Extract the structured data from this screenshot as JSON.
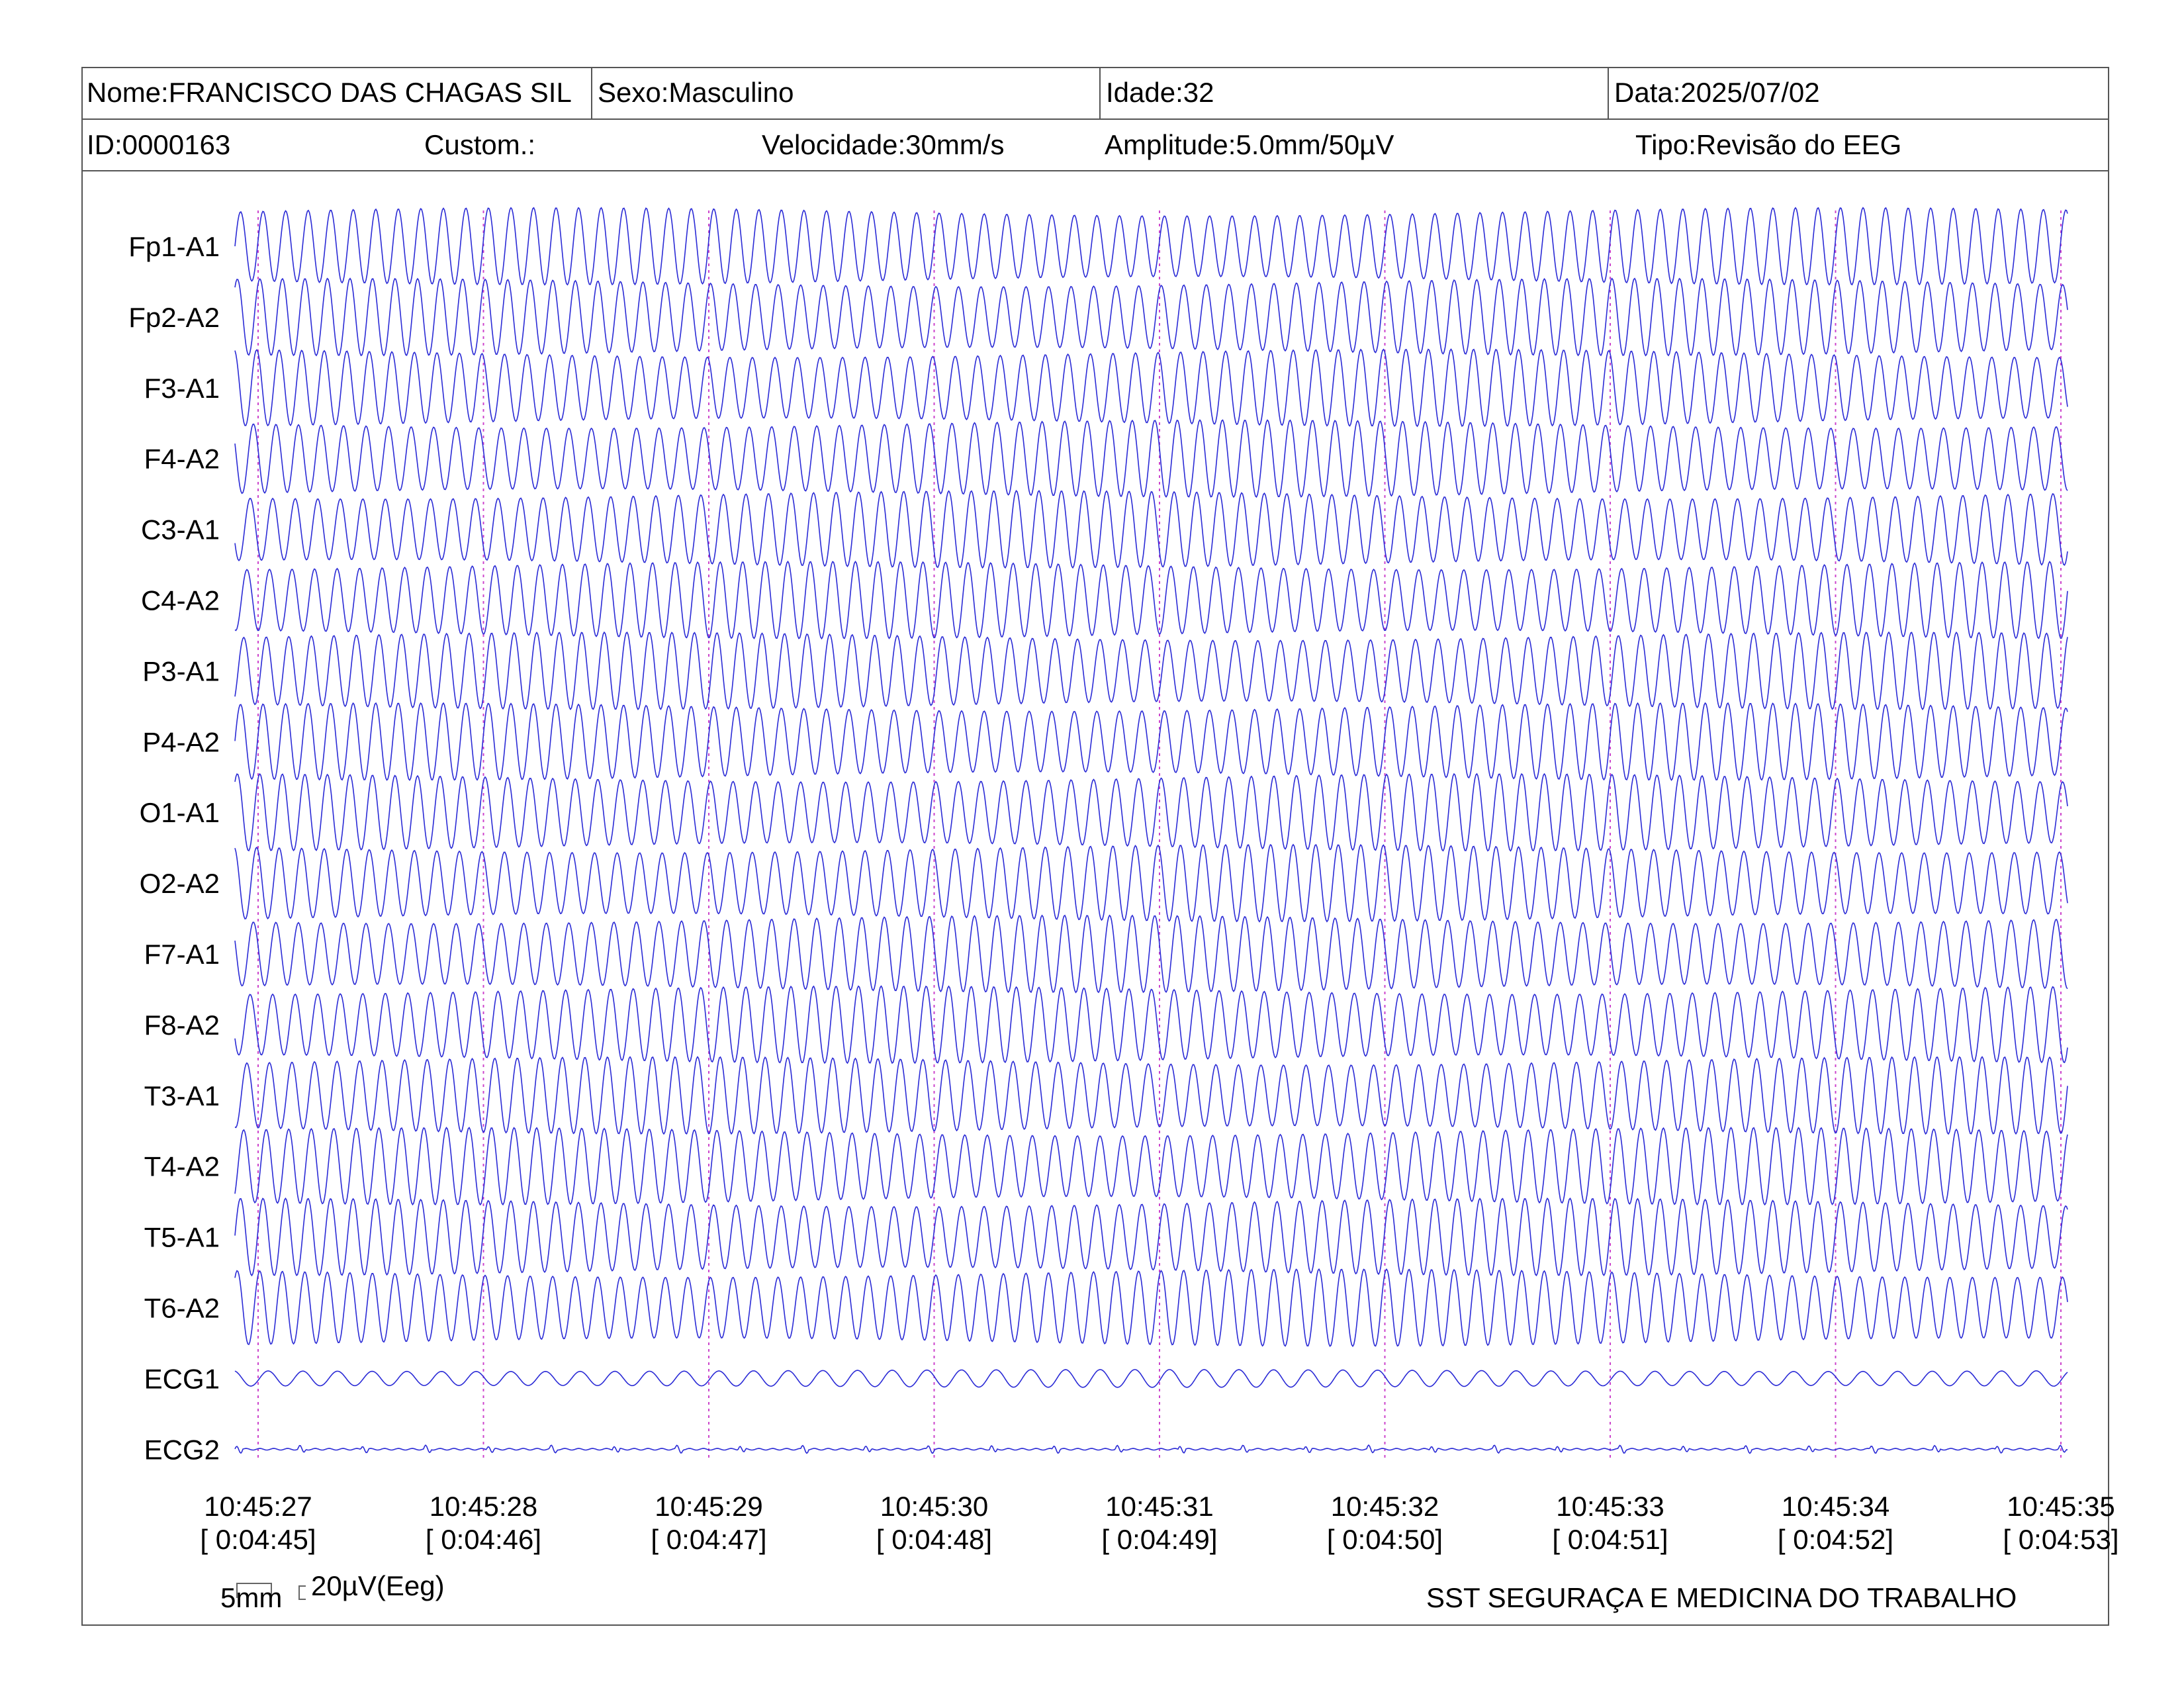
{
  "header": {
    "nome": "Nome:FRANCISCO DAS CHAGAS SIL",
    "sexo": "Sexo:Masculino",
    "idade": "Idade:32",
    "data": "Data:2025/07/02",
    "id": "ID:0000163",
    "custom": "Custom.:",
    "velocidade": "Velocidade:30mm/s",
    "amplitude": "Amplitude:5.0mm/50µV",
    "tipo": "Tipo:Revisão do EEG"
  },
  "scale_bar": {
    "time_label": "5mm",
    "amp_label": "20µV(Eeg)"
  },
  "organization": "SST SEGURAÇA E MEDICINA DO TRABALHO",
  "colors": {
    "trace": "#2b2bd6",
    "marker": "#cc44cc",
    "border": "#555555"
  },
  "chart_data": {
    "type": "line",
    "channels": [
      "Fp1-A1",
      "Fp2-A2",
      "F3-A1",
      "F4-A2",
      "C3-A1",
      "C4-A2",
      "P3-A1",
      "P4-A2",
      "O1-A1",
      "O2-A2",
      "F7-A1",
      "F8-A2",
      "T3-A1",
      "T4-A2",
      "T5-A1",
      "T6-A2",
      "ECG1",
      "ECG2"
    ],
    "time_ticks": [
      {
        "clock": "10:45:27",
        "elapsed": "[ 0:04:45]"
      },
      {
        "clock": "10:45:28",
        "elapsed": "[ 0:04:46]"
      },
      {
        "clock": "10:45:29",
        "elapsed": "[ 0:04:47]"
      },
      {
        "clock": "10:45:30",
        "elapsed": "[ 0:04:48]"
      },
      {
        "clock": "10:45:31",
        "elapsed": "[ 0:04:49]"
      },
      {
        "clock": "10:45:32",
        "elapsed": "[ 0:04:50]"
      },
      {
        "clock": "10:45:33",
        "elapsed": "[ 0:04:51]"
      },
      {
        "clock": "10:45:34",
        "elapsed": "[ 0:04:52]"
      },
      {
        "clock": "10:45:35",
        "elapsed": "[ 0:04:53]"
      }
    ],
    "eeg_cycles_per_second": 10,
    "ecg_cycles_per_second": 6.5
  }
}
